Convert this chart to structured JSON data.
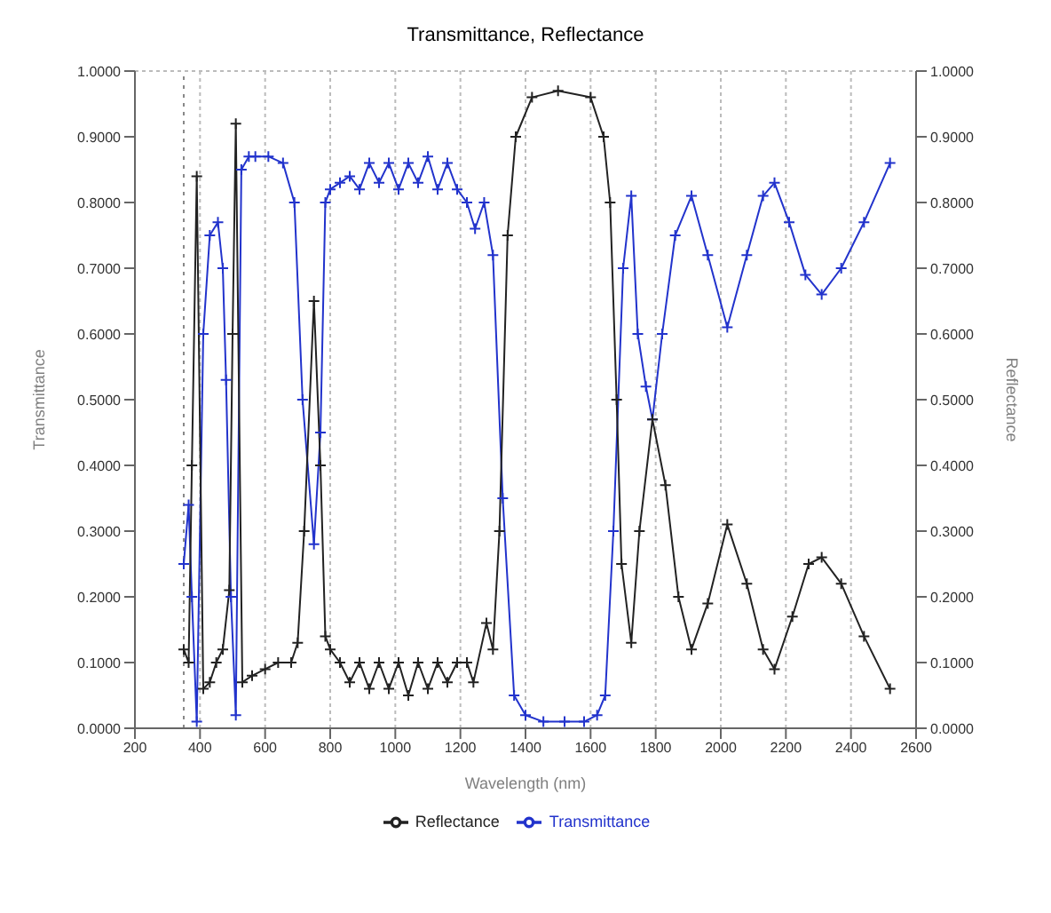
{
  "chart_data": {
    "type": "line",
    "title": "Transmittance, Reflectance",
    "xlabel": "Wavelength (nm)",
    "ylabel": "Transmittance",
    "y2label": "Reflectance",
    "xlim": [
      200,
      2600
    ],
    "xticks": [
      200,
      400,
      600,
      800,
      1000,
      1200,
      1400,
      1600,
      1800,
      2000,
      2200,
      2400,
      2600
    ],
    "ylim": [
      0,
      1
    ],
    "yticks": [
      {
        "value": 0,
        "label": "0.0000"
      },
      {
        "value": 0.1,
        "label": "0.1000"
      },
      {
        "value": 0.2,
        "label": "0.2000"
      },
      {
        "value": 0.3,
        "label": "0.3000"
      },
      {
        "value": 0.4,
        "label": "0.4000"
      },
      {
        "value": 0.5,
        "label": "0.5000"
      },
      {
        "value": 0.6,
        "label": "0.6000"
      },
      {
        "value": 0.7,
        "label": "0.7000"
      },
      {
        "value": 0.8,
        "label": "0.8000"
      },
      {
        "value": 0.9,
        "label": "0.9000"
      },
      {
        "value": 1,
        "label": "1.0000"
      }
    ],
    "y2lim": [
      0,
      1
    ],
    "y2ticks": [
      {
        "value": 0,
        "label": "0.0000"
      },
      {
        "value": 0.1,
        "label": "0.1000"
      },
      {
        "value": 0.2,
        "label": "0.2000"
      },
      {
        "value": 0.3,
        "label": "0.3000"
      },
      {
        "value": 0.4,
        "label": "0.4000"
      },
      {
        "value": 0.5,
        "label": "0.5000"
      },
      {
        "value": 0.6,
        "label": "0.6000"
      },
      {
        "value": 0.7,
        "label": "0.7000"
      },
      {
        "value": 0.8,
        "label": "0.8000"
      },
      {
        "value": 0.9,
        "label": "0.9000"
      },
      {
        "value": 1,
        "label": "1.0000"
      }
    ],
    "grid": true,
    "legend": "bottom",
    "marker": "cross",
    "line_style": "solid",
    "ref_lines": [
      {
        "axis": "x",
        "value": 350,
        "line_style": "dotted",
        "color": "#888888"
      }
    ],
    "series": [
      {
        "name": "Transmittance",
        "color": "#2233cc",
        "x": [
          350,
          365,
          375,
          390,
          410,
          430,
          455,
          470,
          480,
          495,
          510,
          527,
          550,
          570,
          610,
          655,
          690,
          715,
          750,
          770,
          785,
          800,
          830,
          860,
          890,
          920,
          950,
          980,
          1010,
          1040,
          1070,
          1100,
          1130,
          1160,
          1190,
          1220,
          1245,
          1273,
          1300,
          1330,
          1365,
          1400,
          1455,
          1520,
          1580,
          1620,
          1645,
          1670,
          1700,
          1725,
          1745,
          1770,
          1790,
          1820,
          1860,
          1910,
          1960,
          2020,
          2080,
          2130,
          2165,
          2210,
          2260,
          2310,
          2370,
          2440,
          2520
        ],
        "values": [
          0.25,
          0.34,
          0.2,
          0.01,
          0.6,
          0.75,
          0.77,
          0.7,
          0.53,
          0.2,
          0.02,
          0.85,
          0.87,
          0.87,
          0.87,
          0.86,
          0.8,
          0.5,
          0.28,
          0.45,
          0.8,
          0.82,
          0.83,
          0.84,
          0.82,
          0.86,
          0.83,
          0.86,
          0.82,
          0.86,
          0.83,
          0.87,
          0.82,
          0.86,
          0.82,
          0.8,
          0.76,
          0.8,
          0.72,
          0.35,
          0.05,
          0.02,
          0.01,
          0.01,
          0.01,
          0.02,
          0.05,
          0.3,
          0.7,
          0.81,
          0.6,
          0.52,
          0.47,
          0.6,
          0.75,
          0.81,
          0.72,
          0.61,
          0.72,
          0.81,
          0.83,
          0.77,
          0.69,
          0.66,
          0.7,
          0.77,
          0.86
        ]
      },
      {
        "name": "Reflectance",
        "color": "#222222",
        "x": [
          350,
          365,
          375,
          390,
          410,
          430,
          450,
          470,
          490,
          500,
          510,
          530,
          560,
          600,
          640,
          680,
          700,
          720,
          750,
          770,
          785,
          800,
          830,
          860,
          890,
          920,
          950,
          980,
          1010,
          1040,
          1070,
          1100,
          1130,
          1160,
          1190,
          1220,
          1240,
          1280,
          1300,
          1320,
          1345,
          1370,
          1420,
          1500,
          1600,
          1640,
          1660,
          1680,
          1695,
          1725,
          1750,
          1790,
          1830,
          1870,
          1910,
          1960,
          2020,
          2080,
          2130,
          2165,
          2220,
          2270,
          2310,
          2370,
          2440,
          2520
        ],
        "values": [
          0.12,
          0.1,
          0.4,
          0.84,
          0.06,
          0.07,
          0.1,
          0.12,
          0.21,
          0.6,
          0.92,
          0.07,
          0.08,
          0.09,
          0.1,
          0.1,
          0.13,
          0.3,
          0.65,
          0.4,
          0.14,
          0.12,
          0.1,
          0.07,
          0.1,
          0.06,
          0.1,
          0.06,
          0.1,
          0.05,
          0.1,
          0.06,
          0.1,
          0.07,
          0.1,
          0.1,
          0.07,
          0.16,
          0.12,
          0.3,
          0.75,
          0.9,
          0.96,
          0.97,
          0.96,
          0.9,
          0.8,
          0.5,
          0.25,
          0.13,
          0.3,
          0.47,
          0.37,
          0.2,
          0.12,
          0.19,
          0.31,
          0.22,
          0.12,
          0.09,
          0.17,
          0.25,
          0.26,
          0.22,
          0.14,
          0.06
        ]
      }
    ]
  }
}
